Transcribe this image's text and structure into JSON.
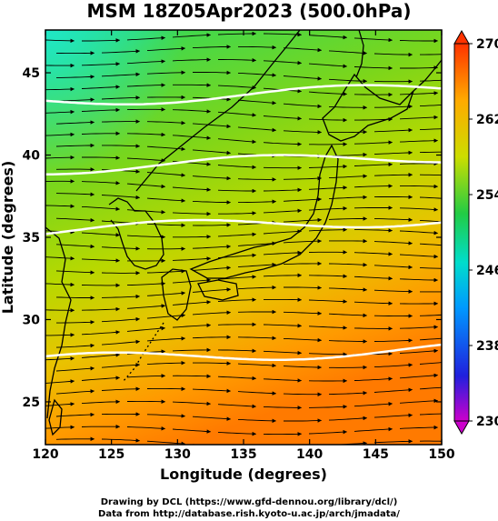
{
  "title": "MSM 18Z05Apr2023 (500.0hPa)",
  "x_axis": {
    "label": "Longitude (degrees)",
    "range": [
      120,
      150
    ],
    "ticks": [
      120,
      125,
      130,
      135,
      140,
      145,
      150
    ]
  },
  "y_axis": {
    "label": "Latitude  (degrees)",
    "range": [
      22.4,
      47.6
    ],
    "ticks": [
      25,
      30,
      35,
      40,
      45
    ]
  },
  "colorbar": {
    "range": [
      230,
      270
    ],
    "ticks": [
      230,
      238,
      246,
      254,
      262,
      270
    ],
    "colors": [
      "#cc00cc",
      "#2020dd",
      "#00aaff",
      "#00cc88",
      "#33cc33",
      "#ccdd00",
      "#ffaa00",
      "#ff3300"
    ]
  },
  "contour_values": [
    {
      "lat": 43.3,
      "label": ""
    },
    {
      "lat": 39.2,
      "label": ""
    },
    {
      "lat": 35.4,
      "label": ""
    },
    {
      "lat": 27.5,
      "label": ""
    }
  ],
  "credits": {
    "line1": "Drawing by DCL (https://www.gfd-dennou.org/library/dcl/)",
    "line2": "Data from http://database.rish.kyoto-u.ac.jp/arch/jmadata/"
  }
}
